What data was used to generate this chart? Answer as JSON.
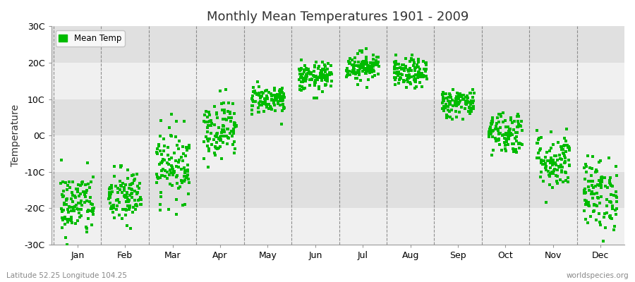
{
  "title": "Monthly Mean Temperatures 1901 - 2009",
  "ylabel": "Temperature",
  "subtitle_left": "Latitude 52.25 Longitude 104.25",
  "subtitle_right": "worldspecies.org",
  "legend_label": "Mean Temp",
  "marker_color": "#00bb00",
  "background_color": "#ffffff",
  "band_colors": [
    "#f0f0f0",
    "#e0e0e0"
  ],
  "ylim": [
    -30,
    30
  ],
  "ytick_labels": [
    "-30C",
    "-20C",
    "-10C",
    "0C",
    "10C",
    "20C",
    "30C"
  ],
  "ytick_values": [
    -30,
    -20,
    -10,
    0,
    10,
    20,
    30
  ],
  "months": [
    "Jan",
    "Feb",
    "Mar",
    "Apr",
    "May",
    "Jun",
    "Jul",
    "Aug",
    "Sep",
    "Oct",
    "Nov",
    "Dec"
  ],
  "monthly_means": [
    -19,
    -17,
    -8,
    2,
    10,
    16,
    19,
    17,
    9,
    1,
    -7,
    -16
  ],
  "monthly_stds": [
    4.5,
    4.0,
    5.0,
    4.0,
    2.0,
    2.0,
    2.0,
    2.0,
    2.0,
    3.0,
    4.0,
    5.0
  ],
  "n_years": 109,
  "seed": 42,
  "marker_size": 3.5,
  "marker_style": "s"
}
